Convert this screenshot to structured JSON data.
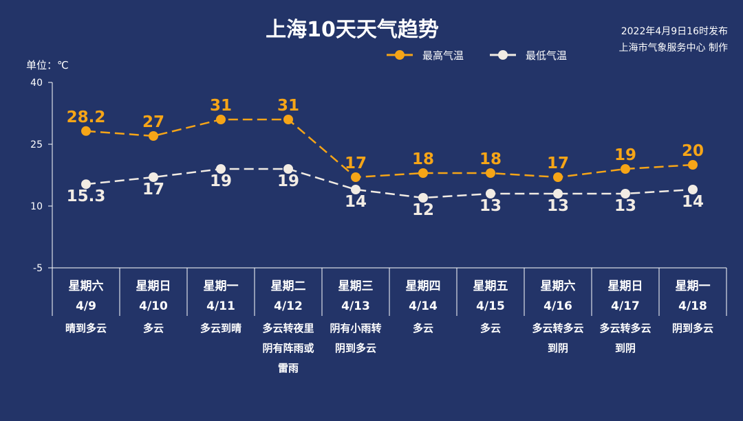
{
  "chart_data": {
    "type": "line",
    "title": "上海10天天气趋势",
    "publish_time": "2022年4月9日16时发布",
    "publisher": "上海市气象服务中心 制作",
    "unit_label": "单位：℃",
    "ylim": [
      -5,
      40
    ],
    "yticks": [
      40,
      25,
      10,
      -5
    ],
    "grid": false,
    "legend_position": "top-right",
    "days": [
      {
        "weekday": "星期六",
        "date": "4/9",
        "weather": [
          "晴到多云"
        ]
      },
      {
        "weekday": "星期日",
        "date": "4/10",
        "weather": [
          "多云"
        ]
      },
      {
        "weekday": "星期一",
        "date": "4/11",
        "weather": [
          "多云到晴"
        ]
      },
      {
        "weekday": "星期二",
        "date": "4/12",
        "weather": [
          "多云转夜里",
          "阴有阵雨或",
          "雷雨"
        ]
      },
      {
        "weekday": "星期三",
        "date": "4/13",
        "weather": [
          "阴有小雨转",
          "阴到多云"
        ]
      },
      {
        "weekday": "星期四",
        "date": "4/14",
        "weather": [
          "多云"
        ]
      },
      {
        "weekday": "星期五",
        "date": "4/15",
        "weather": [
          "多云"
        ]
      },
      {
        "weekday": "星期六",
        "date": "4/16",
        "weather": [
          "多云转多云",
          "到阴"
        ]
      },
      {
        "weekday": "星期日",
        "date": "4/17",
        "weather": [
          "多云转多云",
          "到阴"
        ]
      },
      {
        "weekday": "星期一",
        "date": "4/18",
        "weather": [
          "阴到多云"
        ]
      }
    ],
    "series": [
      {
        "name": "最高气温",
        "color": "#f6a517",
        "values": [
          28.2,
          27,
          31,
          31,
          17,
          18,
          18,
          17,
          19,
          20
        ],
        "labels": [
          "28.2",
          "27",
          "31",
          "31",
          "17",
          "18",
          "18",
          "17",
          "19",
          "20"
        ]
      },
      {
        "name": "最低气温",
        "color": "#f2ece4",
        "values": [
          15.3,
          17,
          19,
          19,
          14,
          12,
          13,
          13,
          13,
          14
        ],
        "labels": [
          "15.3",
          "17",
          "19",
          "19",
          "14",
          "12",
          "13",
          "13",
          "13",
          "14"
        ]
      }
    ]
  }
}
